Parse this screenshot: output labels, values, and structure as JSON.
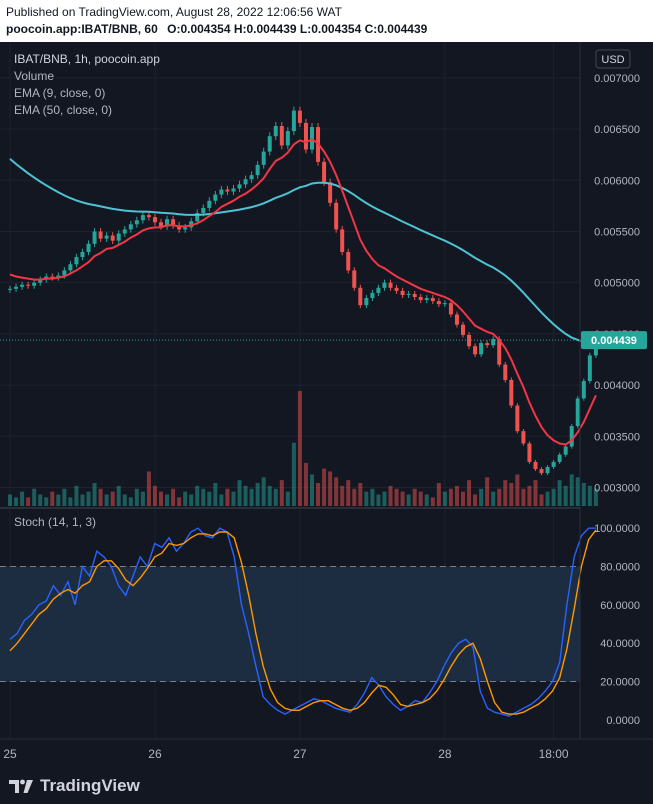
{
  "header": {
    "published": "Published on TradingView.com, August 28, 2022 12:06:56 WAT",
    "symbol_line": "poocoin.app:IBAT/BNB, 60",
    "ohlc": "O:0.004354 H:0.004439 L:0.004354 C:0.004439"
  },
  "legend": {
    "title": "IBAT/BNB, 1h, poocoin.app",
    "volume": "Volume",
    "ema9": "EMA (9, close, 0)",
    "ema50": "EMA (50, close, 0)",
    "stoch": "Stoch (14, 1, 3)",
    "currency": "USD"
  },
  "price_axis_labels": [
    "0.007000",
    "0.006500",
    "0.006000",
    "0.005500",
    "0.005000",
    "0.004500",
    "0.004000",
    "0.003500",
    "0.003000"
  ],
  "last_price_label": "0.004439",
  "stoch_axis_labels": [
    "100.0000",
    "80.0000",
    "60.0000",
    "40.0000",
    "20.0000",
    "0.0000"
  ],
  "time_axis_labels": [
    "25",
    "26",
    "27",
    "28",
    "18:00"
  ],
  "footer": {
    "brand": "TradingView"
  },
  "colors": {
    "background": "#131722",
    "up": "#26a69a",
    "down": "#ef5350",
    "ema9": "#f23645",
    "ema50": "#4ec3d3",
    "stoch_k": "#2962ff",
    "stoch_d": "#ff9800",
    "stoch_band": "#1f3148",
    "text": "#b2b5be"
  },
  "chart_data": [
    {
      "type": "candlestick",
      "title": "IBAT/BNB, 1h, poocoin.app",
      "ylim": [
        0.0028,
        0.00735
      ],
      "x_range_hours": [
        0,
        94
      ],
      "x_ticks": [
        {
          "label": "25",
          "h": 0
        },
        {
          "label": "26",
          "h": 24
        },
        {
          "label": "27",
          "h": 48
        },
        {
          "label": "28",
          "h": 72
        },
        {
          "label": "18:00",
          "h": 90
        }
      ],
      "last_price": 0.004439,
      "close_series": [
        0.00494,
        0.00496,
        0.00498,
        0.00497,
        0.005,
        0.00503,
        0.00506,
        0.00505,
        0.00507,
        0.00512,
        0.00518,
        0.00525,
        0.0053,
        0.00538,
        0.0055,
        0.00543,
        0.00546,
        0.00541,
        0.00548,
        0.00552,
        0.00557,
        0.00561,
        0.00566,
        0.00564,
        0.00559,
        0.00555,
        0.00562,
        0.00556,
        0.00552,
        0.00554,
        0.0056,
        0.00568,
        0.00573,
        0.0058,
        0.00586,
        0.00591,
        0.00589,
        0.00592,
        0.00596,
        0.00601,
        0.00605,
        0.00615,
        0.00628,
        0.00643,
        0.00653,
        0.00634,
        0.00648,
        0.00668,
        0.00656,
        0.0063,
        0.00652,
        0.00618,
        0.00598,
        0.00578,
        0.00552,
        0.0053,
        0.00512,
        0.00495,
        0.00478,
        0.00485,
        0.0049,
        0.00495,
        0.005,
        0.00495,
        0.00492,
        0.00488,
        0.00489,
        0.00486,
        0.00483,
        0.00485,
        0.00482,
        0.00479,
        0.0048,
        0.00469,
        0.00459,
        0.00449,
        0.00438,
        0.0043,
        0.00441,
        0.00439,
        0.00445,
        0.0042,
        0.00405,
        0.0038,
        0.00355,
        0.00343,
        0.00325,
        0.00318,
        0.00314,
        0.0032,
        0.00325,
        0.00332,
        0.0034,
        0.0036,
        0.00387,
        0.00404,
        0.00429,
        0.00439
      ],
      "volume_series": [
        4,
        3,
        5,
        3,
        6,
        4,
        3,
        5,
        4,
        6,
        3,
        7,
        4,
        5,
        8,
        6,
        4,
        5,
        7,
        4,
        3,
        6,
        5,
        12,
        7,
        5,
        4,
        6,
        3,
        5,
        4,
        7,
        6,
        5,
        8,
        4,
        6,
        5,
        9,
        7,
        6,
        8,
        10,
        7,
        6,
        9,
        5,
        22,
        40,
        15,
        11,
        8,
        13,
        12,
        10,
        7,
        9,
        6,
        8,
        5,
        6,
        4,
        5,
        7,
        6,
        5,
        4,
        6,
        5,
        4,
        3,
        8,
        5,
        6,
        7,
        5,
        9,
        4,
        6,
        10,
        5,
        6,
        9,
        8,
        11,
        6,
        7,
        9,
        4,
        5,
        6,
        9,
        7,
        11,
        10,
        8,
        7,
        6
      ],
      "ema9_series": [
        0.00508,
        0.00506,
        0.00505,
        0.00504,
        0.00503,
        0.00503,
        0.00504,
        0.00504,
        0.00505,
        0.00506,
        0.00509,
        0.00512,
        0.00516,
        0.0052,
        0.00526,
        0.00529,
        0.00533,
        0.00534,
        0.00537,
        0.0054,
        0.00544,
        0.00547,
        0.00551,
        0.00553,
        0.00554,
        0.00554,
        0.00556,
        0.00556,
        0.00555,
        0.00555,
        0.00556,
        0.00558,
        0.00561,
        0.00565,
        0.00569,
        0.00574,
        0.00577,
        0.0058,
        0.00584,
        0.00587,
        0.00591,
        0.00596,
        0.00602,
        0.00611,
        0.00619,
        0.00622,
        0.00627,
        0.00635,
        0.00639,
        0.00637,
        0.0064,
        0.00636,
        0.00628,
        0.00618,
        0.00605,
        0.0059,
        0.00574,
        0.00558,
        0.00542,
        0.00531,
        0.00523,
        0.00517,
        0.00514,
        0.0051,
        0.00506,
        0.00503,
        0.005,
        0.00497,
        0.00494,
        0.00492,
        0.0049,
        0.00488,
        0.00486,
        0.00483,
        0.00478,
        0.00472,
        0.00465,
        0.00458,
        0.00455,
        0.00452,
        0.0045,
        0.00444,
        0.00436,
        0.00425,
        0.00411,
        0.00398,
        0.00383,
        0.0037,
        0.00359,
        0.00351,
        0.00346,
        0.00343,
        0.00342,
        0.00346,
        0.00354,
        0.00364,
        0.00377,
        0.0039
      ]
    },
    {
      "type": "line",
      "title": "Stoch (14, 1, 3)",
      "ylim": [
        -10,
        110
      ],
      "bands": [
        20,
        80
      ],
      "series": [
        {
          "values": [
            42,
            45,
            52,
            55,
            60,
            62,
            70,
            65,
            72,
            60,
            80,
            75,
            88,
            85,
            80,
            70,
            65,
            75,
            85,
            80,
            92,
            90,
            95,
            88,
            92,
            98,
            100,
            96,
            95,
            100,
            98,
            85,
            60,
            45,
            28,
            12,
            8,
            5,
            3,
            5,
            7,
            9,
            11,
            10,
            8,
            6,
            5,
            4,
            8,
            14,
            22,
            18,
            12,
            8,
            5,
            7,
            10,
            9,
            14,
            20,
            28,
            35,
            40,
            42,
            38,
            15,
            6,
            4,
            3,
            2,
            4,
            6,
            8,
            11,
            15,
            20,
            30,
            60,
            85,
            96,
            100,
            100
          ]
        },
        {
          "values": [
            36,
            40,
            45,
            50,
            55,
            58,
            63,
            66,
            68,
            66,
            70,
            72,
            80,
            83,
            83,
            79,
            73,
            70,
            74,
            79,
            85,
            87,
            92,
            91,
            92,
            95,
            97,
            97,
            96,
            98,
            98,
            95,
            82,
            65,
            45,
            28,
            16,
            9,
            6,
            5,
            5,
            7,
            9,
            10,
            10,
            8,
            6,
            5,
            6,
            9,
            14,
            18,
            17,
            13,
            8,
            7,
            8,
            9,
            11,
            15,
            21,
            28,
            34,
            38,
            40,
            32,
            20,
            9,
            4,
            3,
            3,
            4,
            6,
            8,
            11,
            15,
            22,
            37,
            58,
            80,
            94,
            99
          ]
        }
      ]
    }
  ]
}
